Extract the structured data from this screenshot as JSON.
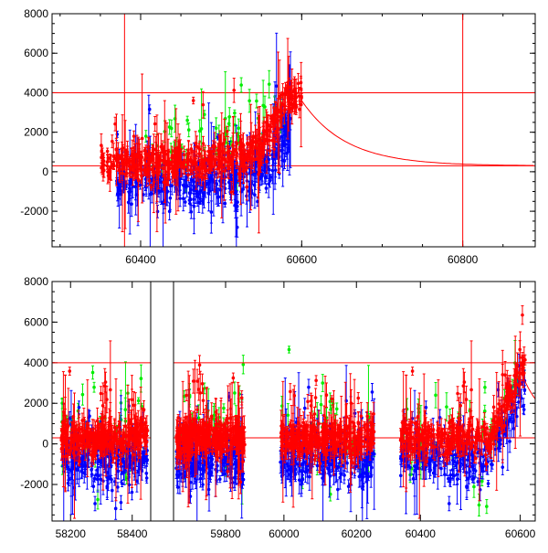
{
  "colors": {
    "red": "#ff0000",
    "green": "#00ee00",
    "blue": "#0000ff",
    "axis": "#000000"
  },
  "chart_data": [
    {
      "type": "scatter",
      "panel": "top",
      "title": "",
      "xlabel": "",
      "ylabel": "",
      "xlim": [
        60290,
        60890
      ],
      "ylim": [
        -3800,
        8000
      ],
      "x_ticks": [
        60400,
        60600,
        60800
      ],
      "y_ticks": [
        -2000,
        0,
        2000,
        4000,
        6000,
        8000
      ],
      "grid": false,
      "legend": "none",
      "hlines": [
        4000,
        300
      ],
      "vlines": [
        60380,
        60800
      ],
      "model_curve": {
        "description_points": [
          [
            60600,
            3600
          ],
          [
            60650,
            2200
          ],
          [
            60700,
            1100
          ],
          [
            60750,
            600
          ],
          [
            60800,
            380
          ],
          [
            60890,
            300
          ]
        ]
      },
      "series": [
        {
          "color": "red",
          "band_center": [
            [
              60350,
              500
            ],
            [
              60450,
              400
            ],
            [
              60520,
              800
            ],
            [
              60550,
              1200
            ],
            [
              60580,
              3800
            ],
            [
              60600,
              3600
            ]
          ],
          "spread": 700
        },
        {
          "color": "blue",
          "band_center": [
            [
              60370,
              -500
            ],
            [
              60450,
              -800
            ],
            [
              60520,
              -400
            ],
            [
              60560,
              500
            ],
            [
              60590,
              2500
            ]
          ],
          "spread": 1000
        },
        {
          "color": "green",
          "band_center": [
            [
              60380,
              800
            ],
            [
              60460,
              1200
            ],
            [
              60520,
              2000
            ],
            [
              60580,
              3500
            ]
          ],
          "spread": 1600
        }
      ]
    },
    {
      "type": "scatter",
      "panel": "bottom",
      "title": "",
      "xlabel": "",
      "ylabel": "",
      "ylim": [
        -3800,
        8000
      ],
      "y_ticks": [
        -2000,
        0,
        2000,
        4000,
        6000,
        8000
      ],
      "grid": false,
      "legend": "none",
      "hlines": [
        4000,
        300
      ],
      "segments": [
        {
          "xlim": [
            58140,
            58460
          ],
          "x_ticks": [
            58200,
            58400
          ],
          "data_range": [
            58170,
            58450
          ]
        },
        {
          "xlim": [
            59610,
            59960
          ],
          "x_ticks": [
            59800,
            60000,
            60200
          ],
          "data_range": [
            59620,
            59870
          ]
        },
        {
          "xlim": [
            59960,
            60280
          ],
          "x_ticks": [],
          "data_range": [
            59990,
            60250
          ]
        },
        {
          "xlim": [
            60330,
            60630
          ],
          "x_ticks": [
            60400,
            60600
          ],
          "data_range": [
            60360,
            60610
          ]
        }
      ],
      "series": [
        {
          "color": "red",
          "center": 300,
          "spread": 700
        },
        {
          "color": "blue",
          "center": -700,
          "spread": 1100
        },
        {
          "color": "green",
          "center": 500,
          "spread": 1800
        }
      ]
    }
  ]
}
